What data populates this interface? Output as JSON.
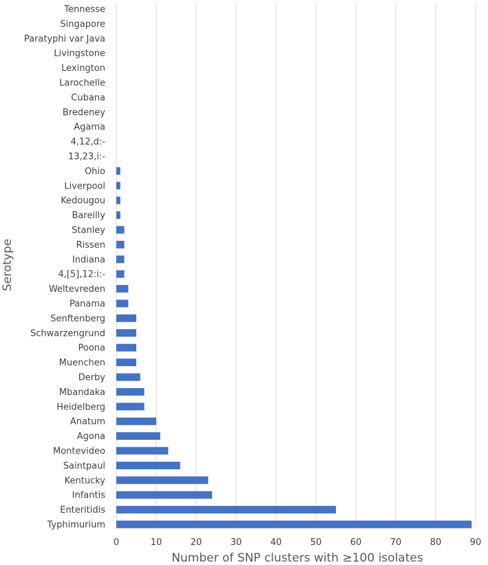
{
  "chart_data": {
    "type": "bar",
    "orientation": "horizontal",
    "xlabel": "Number of SNP clusters with ≥100 isolates",
    "ylabel": "Serotype",
    "xlim": [
      0,
      90
    ],
    "x_ticks": [
      0,
      10,
      20,
      30,
      40,
      50,
      60,
      70,
      80,
      90
    ],
    "grid": "vertical",
    "bar_color": "#4472c4",
    "categories": [
      "Tennesse",
      "Singapore",
      "Paratyphi var Java",
      "Livingstone",
      "Lexington",
      "Larochelle",
      "Cubana",
      "Bredeney",
      "Agama",
      "4,12,d:-",
      "13,23,i:-",
      "Ohio",
      "Liverpool",
      "Kedougou",
      "Bareilly",
      "Stanley",
      "Rissen",
      "Indiana",
      "4,[5],12:i:-",
      "Weltevreden",
      "Panama",
      "Senftenberg",
      "Schwarzengrund",
      "Poona",
      "Muenchen",
      "Derby",
      "Mbandaka",
      "Heidelberg",
      "Anatum",
      "Agona",
      "Montevideo",
      "Saintpaul",
      "Kentucky",
      "Infantis",
      "Enteritidis",
      "Typhimurium"
    ],
    "values": [
      0,
      0,
      0,
      0,
      0,
      0,
      0,
      0,
      0,
      0,
      0,
      1,
      1,
      1,
      1,
      2,
      2,
      2,
      2,
      3,
      3,
      5,
      5,
      5,
      5,
      6,
      7,
      7,
      10,
      11,
      13,
      16,
      23,
      24,
      55,
      89
    ]
  }
}
